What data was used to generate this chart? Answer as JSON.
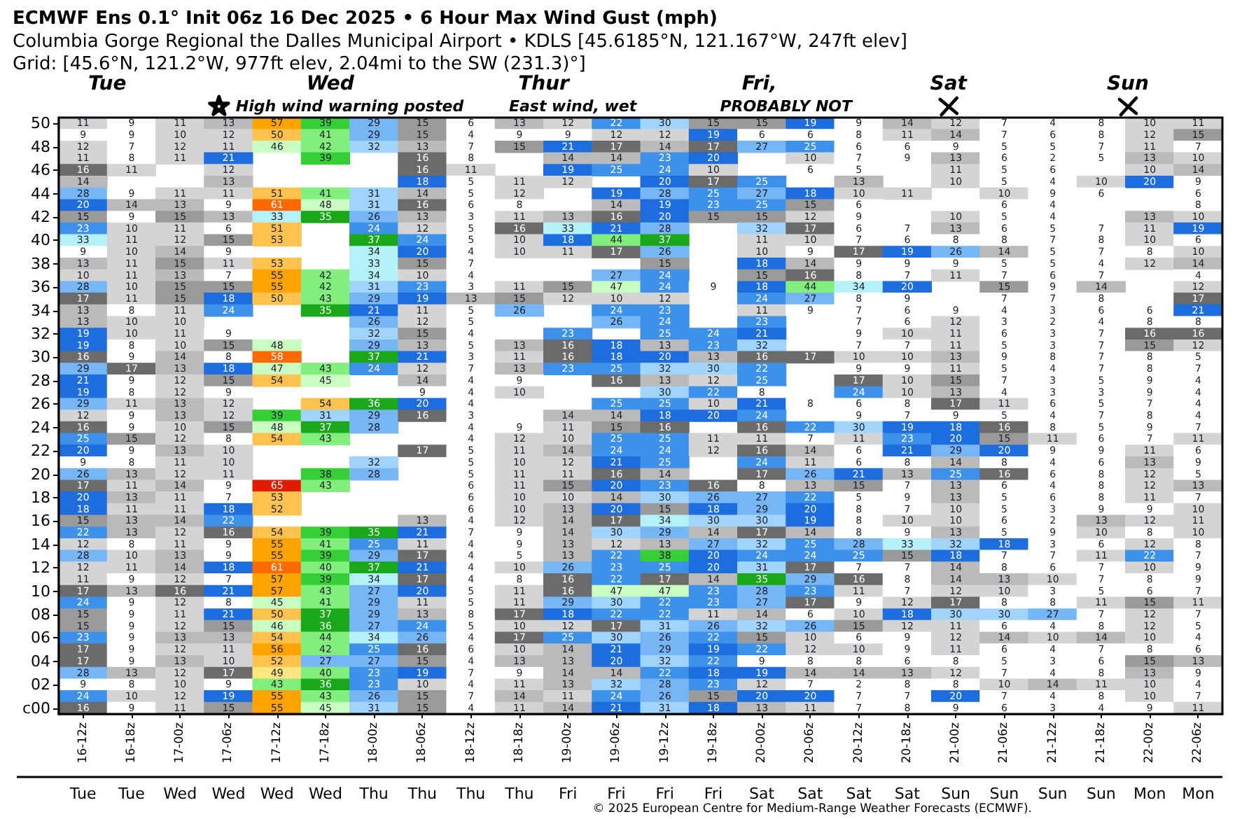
{
  "chart_data": {
    "type": "heatmap",
    "title": "ECMWF Ens 0.1° Init 06z 16 Dec 2025 • 6 Hour Max Wind Gust (mph)",
    "subtitle": "Columbia Gorge Regional the Dalles Municipal Airport • KDLS [45.6185°N, 121.167°W, 247ft elev]\nGrid: [45.6°N, 121.2°W, 977ft elev, 2.04mi to the SW (231.3)°]",
    "categories": [
      "16-12z",
      "16-18z",
      "17-00z",
      "17-06z",
      "17-12z",
      "17-18z",
      "18-00z",
      "18-06z",
      "18-12z",
      "18-18z",
      "19-00z",
      "19-06z",
      "19-12z",
      "19-18z",
      "20-00z",
      "20-06z",
      "20-12z",
      "20-18z",
      "21-00z",
      "21-06z",
      "21-12z",
      "21-18z",
      "22-00z",
      "22-06z"
    ],
    "y_categories": [
      "50",
      null,
      "48",
      null,
      "46",
      null,
      "44",
      null,
      "42",
      null,
      "40",
      null,
      "38",
      null,
      "36",
      null,
      "34",
      null,
      "32",
      null,
      "30",
      null,
      "28",
      null,
      "26",
      null,
      "24",
      null,
      "22",
      null,
      "20",
      null,
      "18",
      null,
      "16",
      null,
      "14",
      null,
      "12",
      null,
      "10",
      null,
      "08",
      null,
      "06",
      null,
      "04",
      null,
      "02",
      null,
      "c00"
    ],
    "cells": [
      [
        11,
        9,
        11,
        13,
        57,
        39,
        29,
        15,
        6,
        13,
        12,
        22,
        30,
        15,
        15,
        19,
        9,
        14,
        12,
        7,
        4,
        8,
        10,
        11
      ],
      [
        9,
        9,
        10,
        12,
        50,
        41,
        29,
        15,
        4,
        9,
        9,
        12,
        12,
        19,
        6,
        6,
        8,
        11,
        14,
        7,
        6,
        8,
        12,
        15
      ],
      [
        12,
        7,
        12,
        11,
        46,
        42,
        32,
        13,
        7,
        15,
        21,
        17,
        14,
        17,
        27,
        25,
        6,
        6,
        9,
        5,
        5,
        7,
        11,
        7
      ],
      [
        11,
        8,
        11,
        21,
        null,
        39,
        null,
        16,
        8,
        null,
        14,
        14,
        23,
        20,
        null,
        10,
        7,
        9,
        13,
        6,
        2,
        5,
        13,
        10
      ],
      [
        16,
        11,
        null,
        12,
        null,
        null,
        null,
        16,
        11,
        null,
        19,
        25,
        24,
        10,
        null,
        6,
        5,
        null,
        11,
        5,
        6,
        null,
        10,
        14
      ],
      [
        14,
        null,
        null,
        13,
        null,
        null,
        null,
        18,
        5,
        11,
        12,
        null,
        20,
        17,
        25,
        null,
        13,
        null,
        10,
        5,
        4,
        10,
        20,
        9
      ],
      [
        28,
        9,
        11,
        11,
        51,
        41,
        31,
        14,
        5,
        12,
        null,
        19,
        28,
        25,
        27,
        18,
        10,
        11,
        null,
        10,
        9,
        6,
        null,
        6
      ],
      [
        20,
        14,
        13,
        9,
        61,
        48,
        31,
        16,
        6,
        8,
        null,
        14,
        19,
        23,
        25,
        15,
        6,
        null,
        null,
        6,
        4,
        null,
        null,
        8
      ],
      [
        15,
        9,
        15,
        13,
        33,
        35,
        26,
        13,
        3,
        11,
        13,
        16,
        20,
        15,
        15,
        12,
        9,
        null,
        10,
        5,
        4,
        null,
        13,
        10
      ],
      [
        23,
        10,
        11,
        6,
        51,
        null,
        24,
        12,
        5,
        16,
        33,
        21,
        28,
        null,
        32,
        17,
        6,
        7,
        13,
        6,
        5,
        7,
        11,
        19
      ],
      [
        33,
        11,
        12,
        15,
        53,
        null,
        37,
        24,
        5,
        10,
        18,
        44,
        37,
        null,
        11,
        10,
        7,
        6,
        8,
        8,
        7,
        8,
        10,
        6
      ],
      [
        9,
        10,
        14,
        9,
        null,
        null,
        34,
        20,
        4,
        10,
        11,
        17,
        26,
        null,
        10,
        9,
        17,
        19,
        26,
        14,
        5,
        7,
        8,
        10
      ],
      [
        13,
        11,
        15,
        11,
        53,
        null,
        33,
        15,
        7,
        null,
        null,
        null,
        15,
        null,
        18,
        14,
        9,
        9,
        9,
        5,
        5,
        4,
        12,
        14
      ],
      [
        10,
        11,
        13,
        7,
        55,
        42,
        34,
        10,
        4,
        null,
        null,
        27,
        24,
        null,
        15,
        16,
        8,
        7,
        11,
        7,
        6,
        7,
        null,
        4
      ],
      [
        28,
        10,
        15,
        15,
        55,
        42,
        31,
        23,
        3,
        11,
        15,
        47,
        24,
        9,
        18,
        44,
        34,
        20,
        null,
        15,
        9,
        14,
        null,
        12
      ],
      [
        17,
        11,
        15,
        18,
        50,
        43,
        29,
        19,
        13,
        15,
        12,
        10,
        12,
        null,
        24,
        27,
        8,
        9,
        null,
        7,
        7,
        8,
        null,
        17
      ],
      [
        13,
        8,
        11,
        24,
        null,
        35,
        21,
        11,
        5,
        26,
        null,
        24,
        23,
        null,
        11,
        9,
        7,
        6,
        9,
        4,
        3,
        6,
        6,
        21
      ],
      [
        13,
        10,
        10,
        null,
        null,
        null,
        26,
        12,
        5,
        null,
        null,
        26,
        24,
        null,
        23,
        null,
        7,
        6,
        12,
        3,
        2,
        4,
        8,
        8
      ],
      [
        19,
        10,
        11,
        9,
        null,
        null,
        32,
        15,
        4,
        null,
        23,
        null,
        25,
        24,
        21,
        null,
        9,
        10,
        11,
        6,
        3,
        7,
        16,
        16
      ],
      [
        19,
        8,
        10,
        15,
        48,
        null,
        29,
        13,
        5,
        13,
        16,
        18,
        13,
        23,
        32,
        null,
        7,
        7,
        11,
        5,
        3,
        7,
        15,
        12
      ],
      [
        16,
        9,
        14,
        8,
        58,
        null,
        37,
        21,
        3,
        11,
        16,
        18,
        20,
        13,
        16,
        17,
        10,
        10,
        13,
        9,
        8,
        7,
        8,
        5
      ],
      [
        29,
        17,
        13,
        18,
        47,
        43,
        24,
        12,
        7,
        13,
        23,
        25,
        32,
        30,
        22,
        null,
        9,
        9,
        11,
        5,
        4,
        7,
        8,
        7
      ],
      [
        21,
        9,
        12,
        15,
        54,
        45,
        null,
        14,
        4,
        9,
        null,
        16,
        13,
        12,
        25,
        null,
        17,
        10,
        15,
        7,
        3,
        5,
        9,
        4
      ],
      [
        19,
        8,
        12,
        9,
        null,
        null,
        null,
        9,
        4,
        10,
        null,
        null,
        30,
        22,
        8,
        null,
        24,
        10,
        13,
        4,
        3,
        3,
        9,
        4
      ],
      [
        29,
        11,
        13,
        12,
        null,
        54,
        36,
        20,
        4,
        null,
        null,
        25,
        25,
        10,
        21,
        8,
        6,
        8,
        17,
        11,
        6,
        5,
        7,
        4
      ],
      [
        12,
        9,
        13,
        12,
        39,
        31,
        29,
        16,
        3,
        null,
        14,
        14,
        18,
        20,
        24,
        null,
        9,
        7,
        9,
        5,
        4,
        7,
        8,
        4
      ],
      [
        16,
        9,
        10,
        15,
        48,
        37,
        28,
        null,
        4,
        9,
        11,
        15,
        16,
        null,
        16,
        22,
        30,
        19,
        18,
        16,
        8,
        5,
        9,
        7
      ],
      [
        25,
        15,
        12,
        8,
        54,
        43,
        null,
        null,
        4,
        12,
        10,
        25,
        25,
        11,
        11,
        7,
        11,
        23,
        20,
        15,
        11,
        6,
        7,
        11
      ],
      [
        20,
        9,
        13,
        10,
        null,
        null,
        null,
        17,
        5,
        11,
        14,
        24,
        24,
        12,
        16,
        14,
        6,
        21,
        29,
        20,
        9,
        9,
        11,
        6
      ],
      [
        9,
        8,
        11,
        10,
        null,
        null,
        32,
        null,
        5,
        10,
        12,
        21,
        25,
        null,
        24,
        11,
        6,
        8,
        14,
        8,
        4,
        6,
        13,
        9
      ],
      [
        26,
        13,
        12,
        11,
        null,
        38,
        28,
        null,
        5,
        11,
        11,
        16,
        14,
        null,
        17,
        26,
        21,
        13,
        25,
        16,
        6,
        8,
        12,
        5
      ],
      [
        17,
        11,
        14,
        9,
        65,
        43,
        null,
        null,
        6,
        11,
        15,
        20,
        23,
        16,
        8,
        13,
        15,
        7,
        13,
        6,
        4,
        8,
        12,
        13
      ],
      [
        20,
        13,
        11,
        7,
        53,
        null,
        null,
        null,
        6,
        10,
        10,
        14,
        30,
        26,
        27,
        22,
        5,
        9,
        13,
        5,
        6,
        8,
        11,
        7
      ],
      [
        18,
        11,
        11,
        18,
        52,
        null,
        null,
        null,
        6,
        10,
        13,
        20,
        15,
        18,
        29,
        20,
        8,
        7,
        10,
        5,
        3,
        9,
        9,
        10
      ],
      [
        15,
        13,
        14,
        22,
        null,
        null,
        null,
        13,
        4,
        12,
        14,
        17,
        34,
        30,
        30,
        19,
        8,
        10,
        10,
        6,
        2,
        13,
        12,
        11
      ],
      [
        22,
        13,
        12,
        16,
        54,
        39,
        35,
        21,
        7,
        9,
        14,
        30,
        29,
        14,
        17,
        14,
        8,
        9,
        13,
        5,
        9,
        10,
        8,
        10
      ],
      [
        12,
        8,
        11,
        9,
        55,
        41,
        25,
        11,
        4,
        9,
        13,
        12,
        13,
        27,
        32,
        25,
        28,
        33,
        32,
        18,
        3,
        6,
        12,
        8
      ],
      [
        28,
        10,
        13,
        9,
        55,
        39,
        29,
        17,
        4,
        5,
        13,
        22,
        38,
        20,
        24,
        24,
        25,
        15,
        18,
        7,
        7,
        11,
        22,
        7
      ],
      [
        12,
        11,
        14,
        18,
        61,
        40,
        37,
        21,
        4,
        10,
        26,
        23,
        25,
        20,
        31,
        17,
        7,
        7,
        14,
        8,
        6,
        7,
        10,
        9
      ],
      [
        11,
        9,
        12,
        7,
        57,
        39,
        34,
        17,
        4,
        8,
        16,
        22,
        17,
        14,
        35,
        29,
        16,
        8,
        14,
        13,
        10,
        7,
        8,
        9
      ],
      [
        17,
        13,
        16,
        21,
        57,
        43,
        27,
        20,
        5,
        11,
        16,
        47,
        47,
        23,
        28,
        23,
        11,
        7,
        12,
        10,
        3,
        5,
        6,
        7
      ],
      [
        24,
        9,
        12,
        8,
        45,
        41,
        29,
        11,
        5,
        11,
        29,
        30,
        22,
        23,
        27,
        17,
        9,
        12,
        17,
        8,
        8,
        11,
        15,
        11
      ],
      [
        15,
        9,
        11,
        21,
        50,
        37,
        29,
        13,
        8,
        17,
        18,
        22,
        22,
        11,
        14,
        6,
        10,
        18,
        30,
        30,
        27,
        7,
        12,
        7
      ],
      [
        15,
        9,
        12,
        15,
        46,
        36,
        27,
        24,
        5,
        10,
        12,
        17,
        31,
        26,
        32,
        26,
        15,
        12,
        11,
        6,
        4,
        8,
        12,
        5
      ],
      [
        23,
        9,
        13,
        13,
        54,
        44,
        34,
        26,
        4,
        17,
        25,
        30,
        26,
        22,
        15,
        10,
        6,
        9,
        12,
        14,
        10,
        14,
        10,
        4
      ],
      [
        17,
        9,
        12,
        11,
        56,
        42,
        25,
        16,
        6,
        10,
        14,
        21,
        29,
        19,
        22,
        12,
        10,
        9,
        11,
        6,
        4,
        7,
        8,
        6
      ],
      [
        17,
        9,
        13,
        10,
        52,
        27,
        27,
        15,
        4,
        13,
        13,
        20,
        32,
        22,
        9,
        8,
        8,
        6,
        8,
        5,
        3,
        6,
        15,
        13
      ],
      [
        28,
        13,
        12,
        17,
        49,
        40,
        23,
        19,
        7,
        9,
        14,
        14,
        22,
        18,
        19,
        14,
        14,
        13,
        12,
        7,
        4,
        8,
        13,
        9
      ],
      [
        9,
        8,
        10,
        9,
        43,
        36,
        23,
        10,
        4,
        11,
        13,
        32,
        28,
        23,
        12,
        7,
        2,
        8,
        8,
        10,
        14,
        11,
        10,
        4
      ],
      [
        24,
        10,
        12,
        19,
        55,
        43,
        26,
        15,
        7,
        14,
        11,
        24,
        26,
        15,
        20,
        20,
        7,
        7,
        20,
        7,
        4,
        8,
        10,
        7
      ],
      [
        16,
        9,
        11,
        15,
        55,
        45,
        31,
        15,
        4,
        11,
        14,
        21,
        31,
        18,
        13,
        11,
        7,
        8,
        9,
        6,
        3,
        4,
        9,
        11
      ]
    ],
    "data_labels": true,
    "annotations": [
      "Tue",
      "Tue",
      "Wed",
      "Wed",
      "Wed",
      "Wed",
      "Thu",
      "Thu",
      "Thu",
      "Thu",
      "Fri",
      "Fri",
      "Fri",
      "Fri",
      "Sat",
      "Sat",
      "Sat",
      "Sat",
      "Sun",
      "Sun",
      "Sun",
      "Sun",
      "Mon",
      "Mon",
      "© 2025 European Centre for Medium-Range Weather Forecasts (ECMWF).",
      "Tue",
      "Wed",
      "Thur",
      "Fri,",
      "Sat",
      "Sun",
      "High wind warning posted",
      "East wind, wet",
      "PROBABLY NOT"
    ]
  }
}
